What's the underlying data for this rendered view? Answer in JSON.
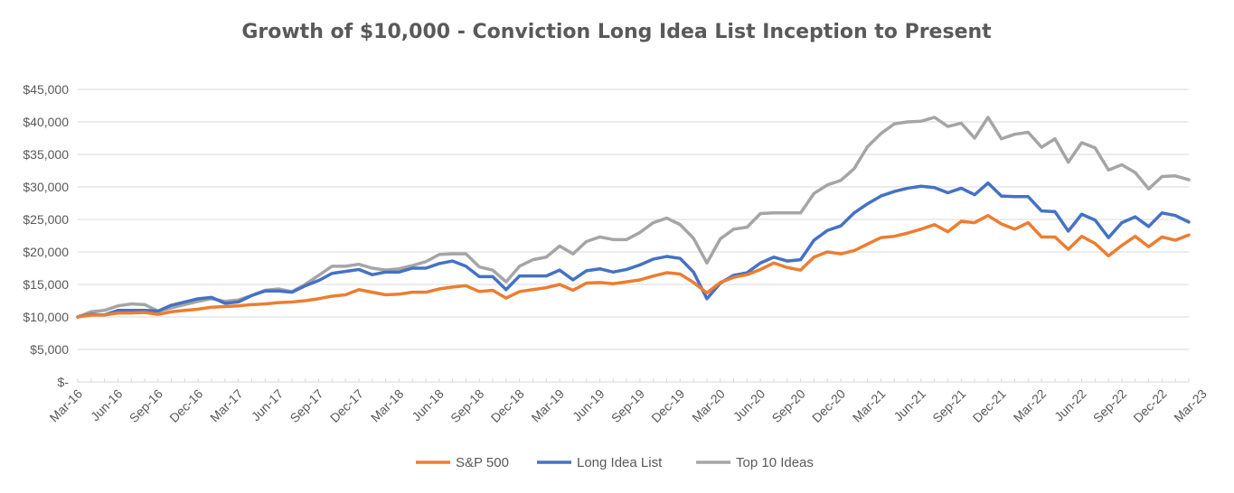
{
  "chart_data": {
    "type": "line",
    "title": "Growth of $10,000 - Conviction Long Idea List Inception to Present",
    "xlabel": "",
    "ylabel": "",
    "ylim": [
      0,
      45000
    ],
    "yticks": [
      {
        "value": 0,
        "label": "$-"
      },
      {
        "value": 5000,
        "label": "$5,000"
      },
      {
        "value": 10000,
        "label": "$10,000"
      },
      {
        "value": 15000,
        "label": "$15,000"
      },
      {
        "value": 20000,
        "label": "$20,000"
      },
      {
        "value": 25000,
        "label": "$25,000"
      },
      {
        "value": 30000,
        "label": "$30,000"
      },
      {
        "value": 35000,
        "label": "$35,000"
      },
      {
        "value": 40000,
        "label": "$40,000"
      },
      {
        "value": 45000,
        "label": "$45,000"
      }
    ],
    "x_tick_labels": [
      "Mar-16",
      "Jun-16",
      "Sep-16",
      "Dec-16",
      "Mar-17",
      "Jun-17",
      "Sep-17",
      "Dec-17",
      "Mar-18",
      "Jun-18",
      "Sep-18",
      "Dec-18",
      "Mar-19",
      "Jun-19",
      "Sep-19",
      "Dec-19",
      "Mar-20",
      "Jun-20",
      "Sep-20",
      "Dec-20",
      "Mar-21",
      "Jun-21",
      "Sep-21",
      "Dec-21",
      "Mar-22",
      "Jun-22",
      "Sep-22",
      "Dec-22",
      "Mar-23"
    ],
    "x_start": "Mar-16",
    "grid": true,
    "legend_position": "bottom",
    "series": [
      {
        "name": "S&P 500",
        "color": "#ED7D31",
        "values": [
          10000,
          10300,
          10300,
          10600,
          10600,
          10700,
          10400,
          10800,
          11000,
          11200,
          11500,
          11600,
          11700,
          11900,
          12000,
          12200,
          12300,
          12500,
          12800,
          13200,
          13400,
          14200,
          13800,
          13400,
          13500,
          13800,
          13800,
          14300,
          14600,
          14800,
          13900,
          14100,
          12900,
          13900,
          14200,
          14500,
          15000,
          14100,
          15200,
          15300,
          15100,
          15400,
          15700,
          16300,
          16800,
          16600,
          15300,
          13700,
          15300,
          16100,
          16500,
          17300,
          18300,
          17600,
          17200,
          19200,
          20000,
          19700,
          20200,
          21200,
          22200,
          22400,
          22900,
          23500,
          24200,
          23100,
          24700,
          24500,
          25600,
          24300,
          23500,
          24500,
          22300,
          22300,
          20400,
          22400,
          21300,
          19400,
          21000,
          22400,
          20800,
          22300,
          21800,
          22600
        ]
      },
      {
        "name": "Long Idea List",
        "color": "#4472C4",
        "values": [
          10000,
          10400,
          10300,
          11000,
          11000,
          11000,
          10900,
          11800,
          12300,
          12800,
          13000,
          12100,
          12300,
          13300,
          14000,
          14000,
          13800,
          14800,
          15600,
          16700,
          17000,
          17300,
          16500,
          16900,
          16900,
          17500,
          17500,
          18200,
          18600,
          17800,
          16200,
          16200,
          14200,
          16300,
          16300,
          16300,
          17200,
          15700,
          17100,
          17400,
          16900,
          17300,
          18000,
          18900,
          19300,
          19000,
          16900,
          12800,
          15200,
          16400,
          16800,
          18300,
          19200,
          18600,
          18800,
          21800,
          23300,
          24000,
          26000,
          27400,
          28600,
          29300,
          29800,
          30100,
          29900,
          29100,
          29800,
          28800,
          30600,
          28600,
          28500,
          28500,
          26300,
          26200,
          23200,
          25800,
          24900,
          22200,
          24500,
          25400,
          23900,
          26000,
          25600,
          24600
        ]
      },
      {
        "name": "Top 10 Ideas",
        "color": "#A5A5A5",
        "values": [
          10000,
          10800,
          11000,
          11700,
          12000,
          11900,
          10900,
          11400,
          11900,
          12400,
          12800,
          12400,
          12600,
          13300,
          14100,
          14300,
          13900,
          15000,
          16400,
          17800,
          17800,
          18100,
          17500,
          17200,
          17400,
          17900,
          18500,
          19600,
          19700,
          19700,
          17700,
          17200,
          15400,
          17800,
          18800,
          19200,
          20900,
          19700,
          21600,
          22300,
          21900,
          21900,
          23000,
          24500,
          25200,
          24200,
          22100,
          18300,
          22000,
          23500,
          23800,
          25900,
          26000,
          26000,
          26000,
          29000,
          30300,
          31000,
          32800,
          36200,
          38200,
          39700,
          40000,
          40100,
          40700,
          39300,
          39800,
          37500,
          40700,
          37400,
          38100,
          38400,
          36100,
          37400,
          33800,
          36800,
          36000,
          32600,
          33400,
          32200,
          29700,
          31600,
          31700,
          31100
        ]
      }
    ]
  }
}
